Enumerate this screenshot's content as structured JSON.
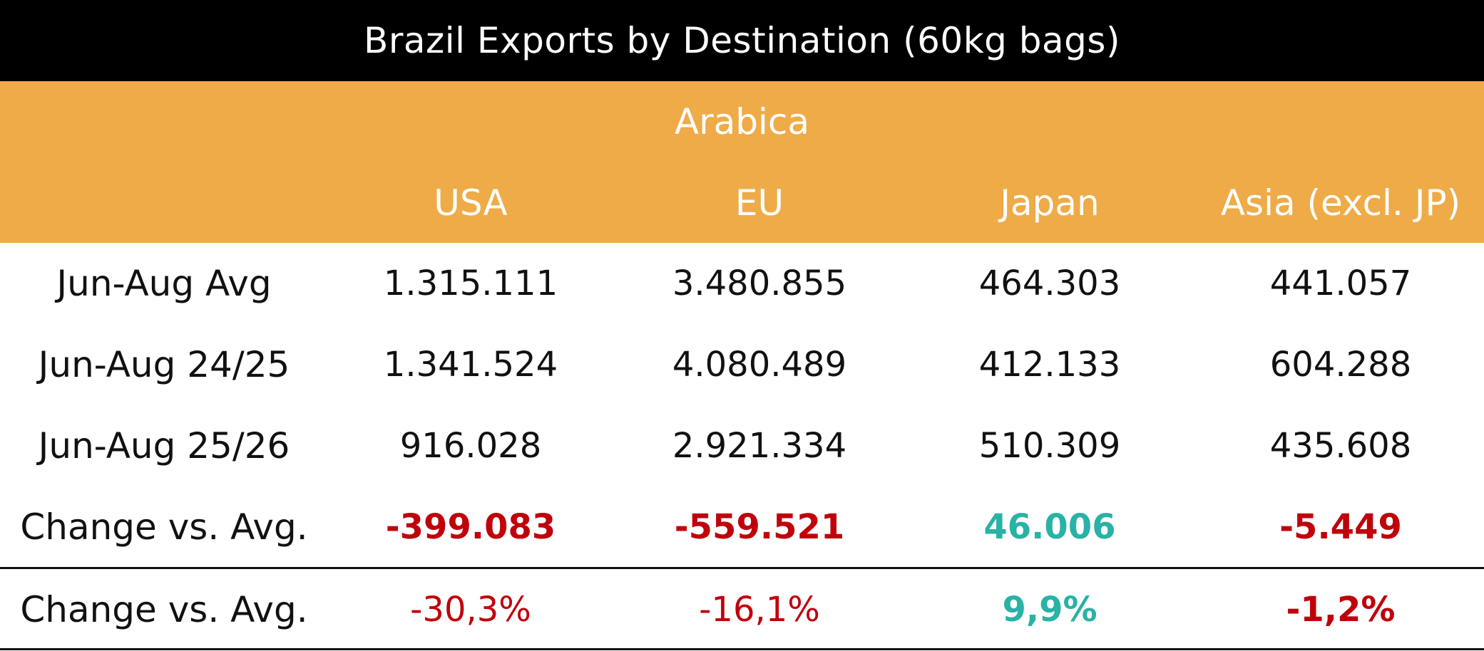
{
  "chart_data": {
    "type": "table",
    "title": "Brazil Exports by Destination (60kg bags)",
    "group_header": "Arabica",
    "columns": [
      "USA",
      "EU",
      "Japan",
      "Asia (excl. JP)"
    ],
    "rows": [
      {
        "label": "Jun-Aug Avg",
        "values": [
          "1.315.111",
          "3.480.855",
          "464.303",
          "441.057"
        ]
      },
      {
        "label": "Jun-Aug 24/25",
        "values": [
          "1.341.524",
          "4.080.489",
          "412.133",
          "604.288"
        ]
      },
      {
        "label": "Jun-Aug 25/26",
        "values": [
          "916.028",
          "2.921.334",
          "510.309",
          "435.608"
        ]
      },
      {
        "label": "Change vs. Avg.",
        "values": [
          "-399.083",
          "-559.521",
          "46.006",
          "-5.449"
        ]
      },
      {
        "label": "Change vs. Avg.",
        "values": [
          "-30,3%",
          "-16,1%",
          "9,9%",
          "-1,2%"
        ]
      }
    ]
  },
  "colors": {
    "header_background": "#000000",
    "group_background": "#eeab47",
    "negative": "#c0000b",
    "positive": "#29b2a6"
  }
}
